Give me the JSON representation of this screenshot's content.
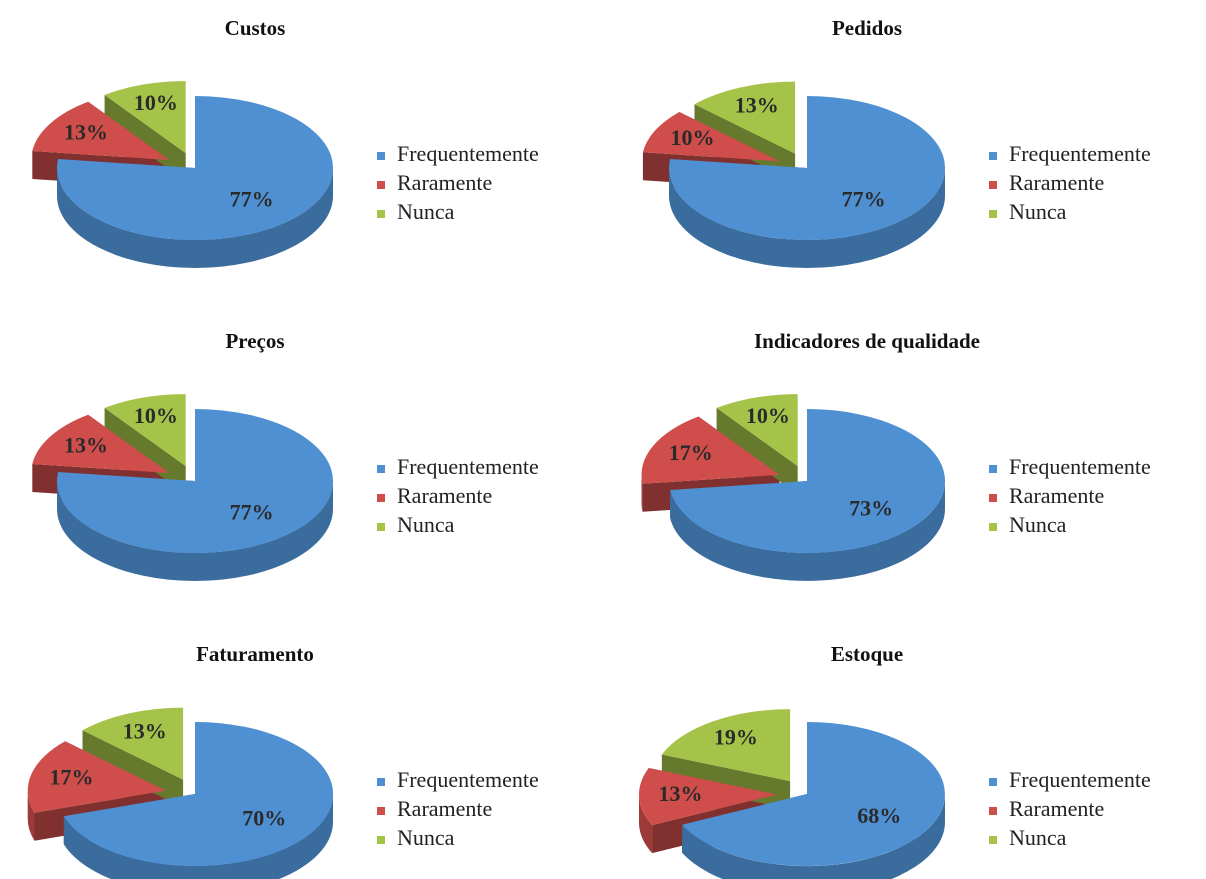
{
  "chart_data": [
    {
      "type": "pie",
      "title": "Custos",
      "categories": [
        "Frequentemente",
        "Raramente",
        "Nunca"
      ],
      "values": [
        77,
        13,
        10
      ],
      "value_labels": [
        "77%",
        "13%",
        "10%"
      ],
      "colors": [
        "#4f90d2",
        "#cf4d4b",
        "#a5c349"
      ],
      "legend": "right"
    },
    {
      "type": "pie",
      "title": "Pedidos",
      "categories": [
        "Frequentemente",
        "Raramente",
        "Nunca"
      ],
      "values": [
        77,
        10,
        13
      ],
      "value_labels": [
        "77%",
        "10%",
        "13%"
      ],
      "colors": [
        "#4f90d2",
        "#cf4d4b",
        "#a5c349"
      ],
      "legend": "right"
    },
    {
      "type": "pie",
      "title": "Preços",
      "categories": [
        "Frequentemente",
        "Raramente",
        "Nunca"
      ],
      "values": [
        77,
        13,
        10
      ],
      "value_labels": [
        "77%",
        "13%",
        "10%"
      ],
      "colors": [
        "#4f90d2",
        "#cf4d4b",
        "#a5c349"
      ],
      "legend": "right"
    },
    {
      "type": "pie",
      "title": "Indicadores de qualidade",
      "categories": [
        "Frequentemente",
        "Raramente",
        "Nunca"
      ],
      "values": [
        73,
        17,
        10
      ],
      "value_labels": [
        "73%",
        "17%",
        "10%"
      ],
      "colors": [
        "#4f90d2",
        "#cf4d4b",
        "#a5c349"
      ],
      "legend": "right"
    },
    {
      "type": "pie",
      "title": "Faturamento",
      "categories": [
        "Frequentemente",
        "Raramente",
        "Nunca"
      ],
      "values": [
        70,
        17,
        13
      ],
      "value_labels": [
        "70%",
        "17%",
        "13%"
      ],
      "colors": [
        "#4f90d2",
        "#cf4d4b",
        "#a5c349"
      ],
      "legend": "right"
    },
    {
      "type": "pie",
      "title": "Estoque",
      "categories": [
        "Frequentemente",
        "Raramente",
        "Nunca"
      ],
      "values": [
        68,
        13,
        19
      ],
      "value_labels": [
        "68%",
        "13%",
        "19%"
      ],
      "colors": [
        "#4f90d2",
        "#cf4d4b",
        "#a5c349"
      ],
      "legend": "right"
    }
  ]
}
